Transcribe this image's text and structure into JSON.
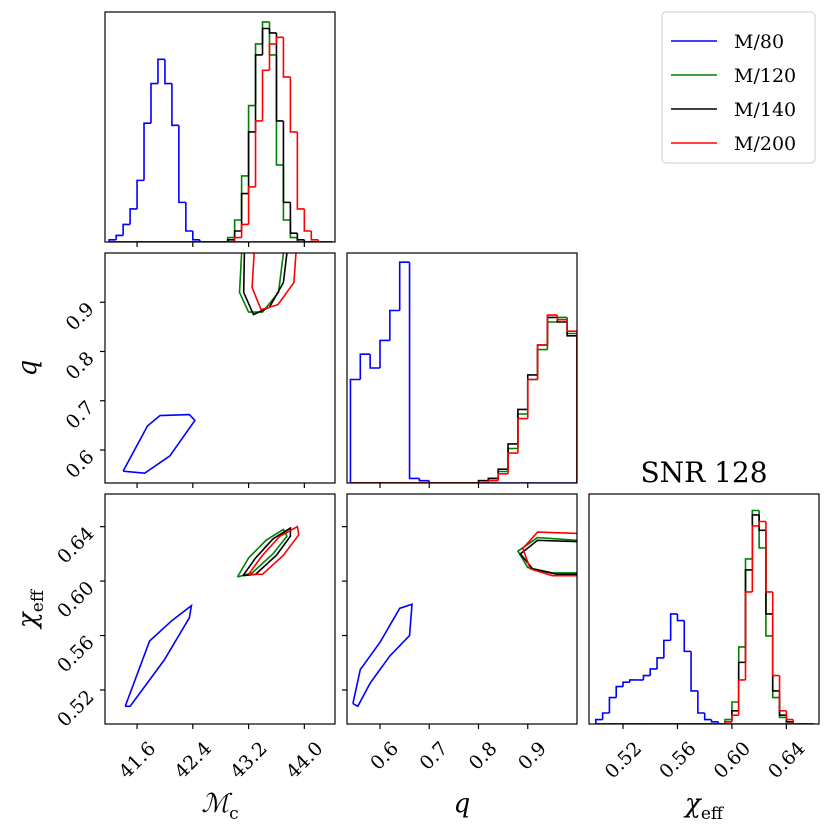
{
  "axes": {
    "mc": {
      "label": {
        "text": "ℳ",
        "sub": "c"
      },
      "lim": [
        41.14,
        44.44
      ],
      "ticks": [
        41.6,
        42.4,
        43.2,
        {
          "value": 44,
          "label": "44.0"
        }
      ]
    },
    "q": {
      "label": {
        "text": "q"
      },
      "lim": [
        0.533,
        1.0
      ],
      "ticks": [
        0.6,
        0.7,
        0.8,
        0.9
      ]
    },
    "chi": {
      "label": {
        "text": "χ",
        "sub": "eff"
      },
      "lim": [
        0.495,
        0.664
      ],
      "ticks": [
        0.52,
        0.56,
        {
          "value": 0.6,
          "label": "0.60"
        },
        0.64
      ]
    }
  },
  "chart_data": [
    {
      "type": "histogram",
      "x": "mc",
      "ylim": [
        0,
        1.045
      ],
      "legend": "upper right",
      "bins": [
        41.2,
        41.3,
        41.4,
        41.5,
        41.6,
        41.7,
        41.8,
        41.9,
        42.0,
        42.1,
        42.2,
        42.3,
        42.4,
        42.5,
        42.6,
        42.7,
        42.8,
        42.9,
        43.0,
        43.1,
        43.2,
        43.3,
        43.4,
        43.5,
        43.6,
        43.7,
        43.8,
        43.9,
        44.0,
        44.1,
        44.2,
        44.3,
        44.4
      ],
      "series": [
        {
          "name": "M/80",
          "color": "blue",
          "values": [
            0.01,
            0.03,
            0.08,
            0.15,
            0.28,
            0.54,
            0.72,
            0.83,
            0.72,
            0.53,
            0.18,
            0.05,
            0.01,
            0,
            0,
            0,
            0,
            0,
            0,
            0,
            0,
            0,
            0,
            0,
            0,
            0,
            0,
            0,
            0,
            0,
            0,
            0
          ]
        },
        {
          "name": "M/120",
          "color": "green",
          "values": [
            0,
            0,
            0,
            0,
            0,
            0,
            0,
            0,
            0,
            0,
            0,
            0,
            0,
            0,
            0,
            0,
            0,
            0.02,
            0.1,
            0.3,
            0.62,
            0.9,
            1.0,
            0.85,
            0.35,
            0.1,
            0.02,
            0,
            0,
            0,
            0,
            0
          ]
        },
        {
          "name": "M/140",
          "color": "black",
          "values": [
            0,
            0,
            0,
            0,
            0,
            0,
            0,
            0,
            0,
            0,
            0,
            0,
            0,
            0,
            0,
            0,
            0,
            0.01,
            0.05,
            0.22,
            0.5,
            0.85,
            0.97,
            0.95,
            0.55,
            0.18,
            0.04,
            0.01,
            0,
            0,
            0,
            0
          ]
        },
        {
          "name": "M/200",
          "color": "red",
          "values": [
            0,
            0,
            0,
            0,
            0,
            0,
            0,
            0,
            0,
            0,
            0,
            0,
            0,
            0,
            0,
            0,
            0,
            0,
            0.02,
            0.08,
            0.25,
            0.55,
            0.78,
            0.9,
            0.93,
            0.75,
            0.5,
            0.15,
            0.05,
            0.01,
            0,
            0
          ]
        }
      ]
    },
    {
      "type": "contour",
      "x": "mc",
      "y": "q",
      "series": [
        {
          "color": "blue",
          "x": [
            41.4,
            41.75,
            41.93,
            42.35,
            42.43,
            42.07,
            41.71,
            41.4
          ],
          "y": [
            0.557,
            0.649,
            0.67,
            0.672,
            0.66,
            0.588,
            0.553,
            0.557
          ]
        },
        {
          "color": "green",
          "x": [
            43.1,
            43.07,
            43.2,
            43.4,
            43.63,
            43.7
          ],
          "y": [
            1.0,
            0.92,
            0.88,
            0.88,
            0.92,
            1.0
          ]
        },
        {
          "color": "black",
          "x": [
            43.14,
            43.13,
            43.27,
            43.5,
            43.7,
            43.75
          ],
          "y": [
            1.0,
            0.92,
            0.875,
            0.89,
            0.94,
            1.0
          ]
        },
        {
          "color": "red",
          "x": [
            43.28,
            43.25,
            43.38,
            43.62,
            43.85,
            43.88
          ],
          "y": [
            1.0,
            0.93,
            0.885,
            0.895,
            0.94,
            1.0
          ]
        }
      ]
    },
    {
      "type": "histogram",
      "x": "q",
      "ylim": [
        0,
        1.0
      ],
      "bins": [
        0.54,
        0.56,
        0.58,
        0.6,
        0.62,
        0.64,
        0.66,
        0.68,
        0.7,
        0.72,
        0.74,
        0.76,
        0.78,
        0.8,
        0.82,
        0.84,
        0.86,
        0.88,
        0.9,
        0.92,
        0.94,
        0.96,
        0.98,
        1.0
      ],
      "series": [
        {
          "color": "blue",
          "values": [
            0.45,
            0.56,
            0.5,
            0.62,
            0.75,
            0.96,
            0.02,
            0.01,
            0,
            0,
            0,
            0,
            0,
            0,
            0,
            0,
            0,
            0,
            0,
            0,
            0,
            0,
            0
          ]
        },
        {
          "color": "green",
          "values": [
            0,
            0,
            0,
            0,
            0,
            0,
            0,
            0,
            0,
            0,
            0,
            0,
            0,
            0.01,
            0.02,
            0.05,
            0.15,
            0.3,
            0.45,
            0.58,
            0.7,
            0.72,
            0.65
          ]
        },
        {
          "color": "black",
          "values": [
            0,
            0,
            0,
            0,
            0,
            0,
            0,
            0,
            0,
            0,
            0,
            0,
            0,
            0.01,
            0.02,
            0.06,
            0.17,
            0.32,
            0.47,
            0.6,
            0.72,
            0.7,
            0.64
          ]
        },
        {
          "color": "red",
          "values": [
            0,
            0,
            0,
            0,
            0,
            0,
            0,
            0,
            0,
            0,
            0,
            0,
            0,
            0,
            0.01,
            0.04,
            0.13,
            0.28,
            0.45,
            0.6,
            0.73,
            0.71,
            0.66
          ]
        }
      ]
    },
    {
      "type": "contour",
      "x": "mc",
      "y": "chi",
      "series": [
        {
          "color": "blue",
          "x": [
            41.43,
            41.78,
            42.1,
            42.38,
            42.35,
            41.99,
            41.5,
            41.43
          ],
          "y": [
            0.508,
            0.556,
            0.571,
            0.582,
            0.573,
            0.542,
            0.508,
            0.508
          ]
        },
        {
          "color": "green",
          "x": [
            43.04,
            43.2,
            43.45,
            43.7,
            43.75,
            43.55,
            43.25,
            43.04
          ],
          "y": [
            0.603,
            0.617,
            0.63,
            0.638,
            0.633,
            0.62,
            0.606,
            0.603
          ]
        },
        {
          "color": "black",
          "x": [
            43.12,
            43.3,
            43.55,
            43.8,
            43.8,
            43.6,
            43.3,
            43.12
          ],
          "y": [
            0.604,
            0.617,
            0.631,
            0.639,
            0.633,
            0.619,
            0.605,
            0.604
          ]
        },
        {
          "color": "red",
          "x": [
            43.2,
            43.4,
            43.65,
            43.9,
            43.92,
            43.7,
            43.4,
            43.2
          ],
          "y": [
            0.605,
            0.619,
            0.633,
            0.64,
            0.634,
            0.619,
            0.605,
            0.605
          ]
        }
      ]
    },
    {
      "type": "contour",
      "x": "q",
      "y": "chi",
      "series": [
        {
          "color": "blue",
          "x": [
            0.545,
            0.56,
            0.6,
            0.64,
            0.665,
            0.66,
            0.62,
            0.58,
            0.555,
            0.545
          ],
          "y": [
            0.51,
            0.535,
            0.555,
            0.58,
            0.583,
            0.56,
            0.545,
            0.525,
            0.508,
            0.51
          ]
        },
        {
          "color": "green",
          "x": [
            1.0,
            0.92,
            0.88,
            0.9,
            0.95,
            1.0
          ],
          "y": [
            0.63,
            0.632,
            0.622,
            0.61,
            0.606,
            0.606
          ]
        },
        {
          "color": "black",
          "x": [
            1.0,
            0.92,
            0.885,
            0.91,
            0.96,
            1.0
          ],
          "y": [
            0.629,
            0.63,
            0.62,
            0.609,
            0.605,
            0.605
          ]
        },
        {
          "color": "red",
          "x": [
            1.0,
            0.92,
            0.89,
            0.905,
            0.95,
            1.0
          ],
          "y": [
            0.635,
            0.636,
            0.624,
            0.609,
            0.604,
            0.604
          ]
        }
      ]
    },
    {
      "type": "histogram",
      "x": "chi",
      "ylim": [
        0,
        1.045
      ],
      "title": "SNR 128",
      "bins": [
        0.5,
        0.505,
        0.51,
        0.515,
        0.52,
        0.525,
        0.53,
        0.535,
        0.54,
        0.545,
        0.55,
        0.555,
        0.56,
        0.565,
        0.57,
        0.575,
        0.58,
        0.585,
        0.59,
        0.595,
        0.6,
        0.605,
        0.61,
        0.615,
        0.62,
        0.625,
        0.63,
        0.635,
        0.64,
        0.645,
        0.65,
        0.655,
        0.66
      ],
      "series": [
        {
          "color": "blue",
          "values": [
            0.02,
            0.05,
            0.12,
            0.17,
            0.19,
            0.2,
            0.2,
            0.22,
            0.25,
            0.3,
            0.38,
            0.5,
            0.47,
            0.33,
            0.15,
            0.05,
            0.02,
            0.01,
            0,
            0,
            0,
            0,
            0,
            0,
            0,
            0,
            0,
            0,
            0,
            0,
            0,
            0
          ]
        },
        {
          "color": "green",
          "values": [
            0,
            0,
            0,
            0,
            0,
            0,
            0,
            0,
            0,
            0,
            0,
            0,
            0,
            0,
            0,
            0,
            0,
            0,
            0,
            0.02,
            0.1,
            0.35,
            0.75,
            0.97,
            0.8,
            0.4,
            0.12,
            0.03,
            0.01,
            0,
            0,
            0
          ]
        },
        {
          "color": "black",
          "values": [
            0,
            0,
            0,
            0,
            0,
            0,
            0,
            0,
            0,
            0,
            0,
            0,
            0,
            0,
            0,
            0,
            0,
            0,
            0,
            0.01,
            0.06,
            0.28,
            0.7,
            0.95,
            0.88,
            0.5,
            0.15,
            0.04,
            0.01,
            0,
            0,
            0
          ]
        },
        {
          "color": "red",
          "values": [
            0,
            0,
            0,
            0,
            0,
            0,
            0,
            0,
            0,
            0,
            0,
            0,
            0,
            0,
            0,
            0,
            0,
            0,
            0,
            0.01,
            0.04,
            0.2,
            0.6,
            0.9,
            0.92,
            0.6,
            0.22,
            0.06,
            0.02,
            0,
            0,
            0
          ]
        }
      ]
    }
  ]
}
